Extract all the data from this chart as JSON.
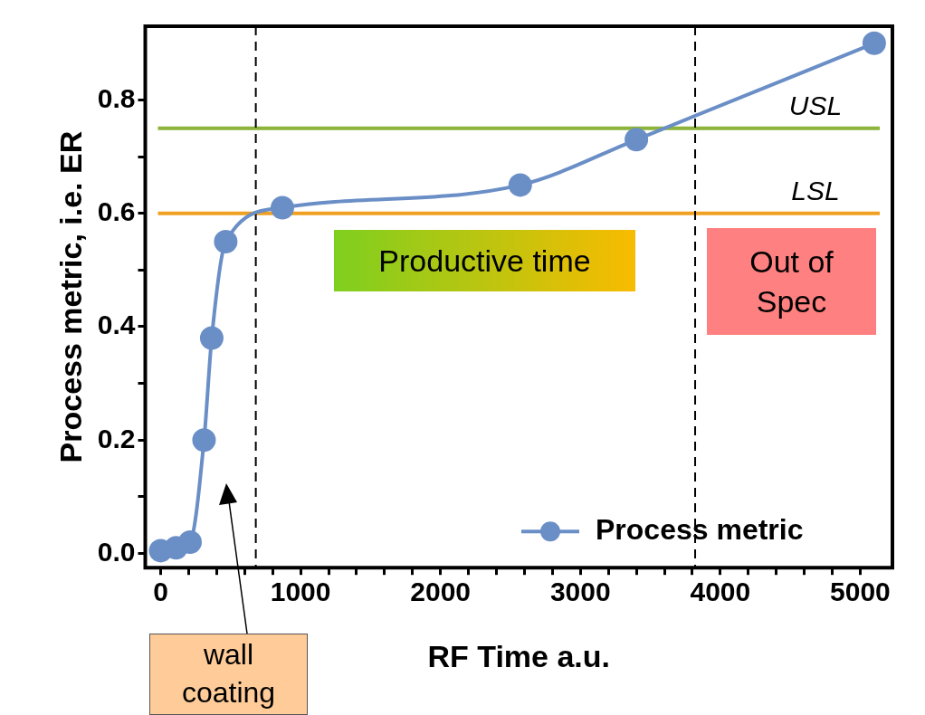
{
  "chart_data": {
    "type": "line",
    "xlabel": "RF Time a.u.",
    "ylabel": "Process metric, i.e. ER",
    "x": [
      0,
      110,
      210,
      310,
      365,
      465,
      870,
      2570,
      3400,
      5100
    ],
    "series": [
      {
        "name": "Process metric",
        "color": "#6a8ec6",
        "values": [
          0.005,
          0.01,
          0.02,
          0.2,
          0.38,
          0.55,
          0.61,
          0.65,
          0.73,
          0.9
        ]
      }
    ],
    "xlim": [
      -110,
      5230
    ],
    "ylim": [
      -0.025,
      0.93
    ],
    "xticks": [
      0,
      {
        "value": 200,
        "label": null
      },
      {
        "value": 400,
        "label": null
      },
      {
        "value": 600,
        "label": null
      },
      {
        "value": 800,
        "label": null
      },
      1000,
      {
        "value": 1200,
        "label": null
      },
      {
        "value": 1400,
        "label": null
      },
      {
        "value": 1600,
        "label": null
      },
      {
        "value": 1800,
        "label": null
      },
      2000,
      {
        "value": 2200,
        "label": null
      },
      {
        "value": 2400,
        "label": null
      },
      {
        "value": 2600,
        "label": null
      },
      {
        "value": 2800,
        "label": null
      },
      3000,
      {
        "value": 3200,
        "label": null
      },
      {
        "value": 3400,
        "label": null
      },
      {
        "value": 3600,
        "label": null
      },
      {
        "value": 3800,
        "label": null
      },
      4000,
      {
        "value": 4200,
        "label": null
      },
      {
        "value": 4400,
        "label": null
      },
      {
        "value": 4600,
        "label": null
      },
      {
        "value": 4800,
        "label": null
      },
      5000
    ],
    "yticks": [
      {
        "value": 0,
        "label": "0.0"
      },
      {
        "value": 0.1,
        "label": null
      },
      {
        "value": 0.2,
        "label": "0.2"
      },
      {
        "value": 0.3,
        "label": null
      },
      {
        "value": 0.4,
        "label": "0.4"
      },
      {
        "value": 0.5,
        "label": null
      },
      {
        "value": 0.6,
        "label": "0.6"
      },
      {
        "value": 0.7,
        "label": null
      },
      {
        "value": 0.8,
        "label": "0.8"
      }
    ],
    "ref_lines": [
      {
        "axis": "y",
        "value": 0.75,
        "label": "USL",
        "color": "#8db33a",
        "line_style": "solid"
      },
      {
        "axis": "y",
        "value": 0.6,
        "label": "LSL",
        "color": "#f0a020",
        "line_style": "solid"
      },
      {
        "axis": "x",
        "value": 680,
        "color": "#000000",
        "line_style": "dashed"
      },
      {
        "axis": "x",
        "value": 3820,
        "color": "#000000",
        "line_style": "dashed"
      }
    ],
    "annotations": [
      "Productive time",
      "Out of Spec",
      "wall coating"
    ],
    "marker": "circle",
    "line_style": "solid",
    "grid": false,
    "legend": "bottom right"
  }
}
